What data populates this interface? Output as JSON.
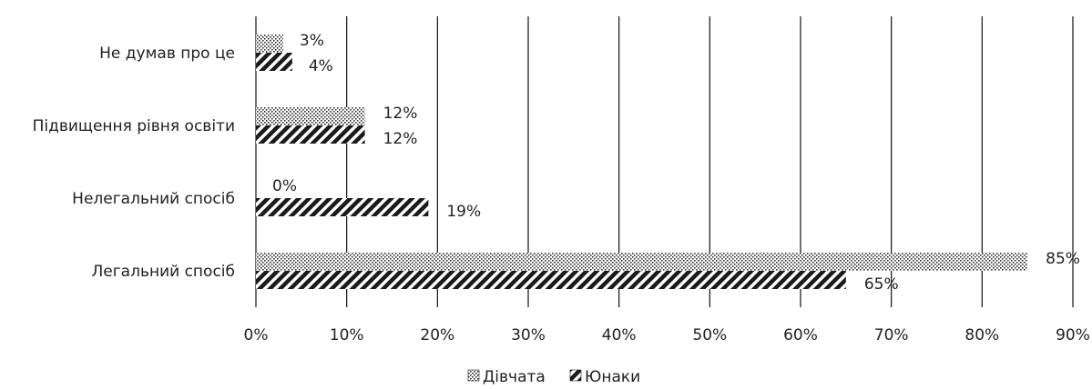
{
  "chart_data": {
    "type": "bar",
    "orientation": "horizontal",
    "categories": [
      "Не думав про це",
      "Підвищення рівня освіти",
      "Нелегальний спосіб",
      "Легальний спосіб"
    ],
    "series": [
      {
        "name": "Дівчата",
        "values": [
          3,
          12,
          0,
          85
        ],
        "labels": [
          "3%",
          "12%",
          "0%",
          "85%"
        ],
        "pattern": "dots"
      },
      {
        "name": "Юнаки",
        "values": [
          4,
          12,
          19,
          65
        ],
        "labels": [
          "4%",
          "12%",
          "19%",
          "65%"
        ],
        "pattern": "diagonal-stripes"
      }
    ],
    "xlim": [
      0,
      90
    ],
    "xticks": [
      0,
      10,
      20,
      30,
      40,
      50,
      60,
      70,
      80,
      90
    ],
    "xtick_labels": [
      "0%",
      "10%",
      "20%",
      "30%",
      "40%",
      "50%",
      "60%",
      "70%",
      "80%",
      "90%"
    ],
    "grid": true,
    "legend_position": "bottom",
    "bar_color": "#222222",
    "title": "",
    "xlabel": "",
    "ylabel": ""
  }
}
